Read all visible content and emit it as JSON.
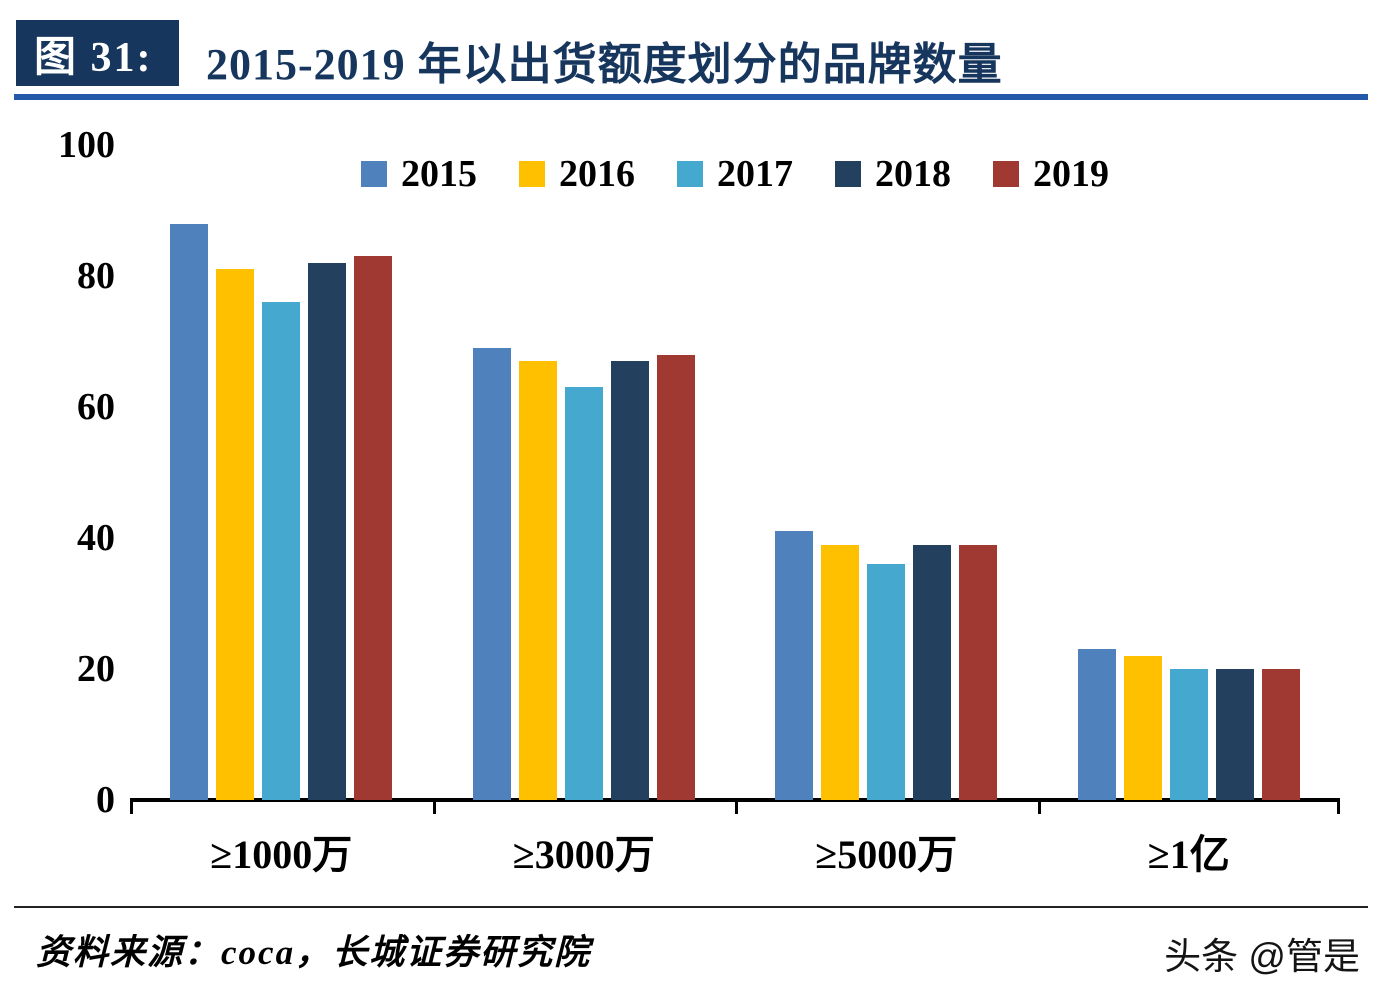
{
  "header": {
    "figure_label": "图 31:",
    "title": "2015-2019 年以出货额度划分的品牌数量"
  },
  "chart_data": {
    "type": "bar",
    "title": "2015-2019 年以出货额度划分的品牌数量",
    "categories": [
      "≥1000万",
      "≥3000万",
      "≥5000万",
      "≥1亿"
    ],
    "series": [
      {
        "name": "2015",
        "color": "#4F81BD",
        "values": [
          88,
          69,
          41,
          23
        ]
      },
      {
        "name": "2016",
        "color": "#FFC000",
        "values": [
          81,
          67,
          39,
          22
        ]
      },
      {
        "name": "2017",
        "color": "#44A8CF",
        "values": [
          76,
          63,
          36,
          20
        ]
      },
      {
        "name": "2018",
        "color": "#24405F",
        "values": [
          82,
          67,
          39,
          20
        ]
      },
      {
        "name": "2019",
        "color": "#A03931",
        "values": [
          83,
          68,
          39,
          20
        ]
      }
    ],
    "ylim": [
      0,
      100
    ],
    "yticks": [
      0,
      20,
      40,
      60,
      80,
      100
    ],
    "legend_position": "top-center",
    "grid": false
  },
  "footer": {
    "source": "资料来源：coca，长城证券研究院",
    "watermark": "头条 @管是"
  }
}
